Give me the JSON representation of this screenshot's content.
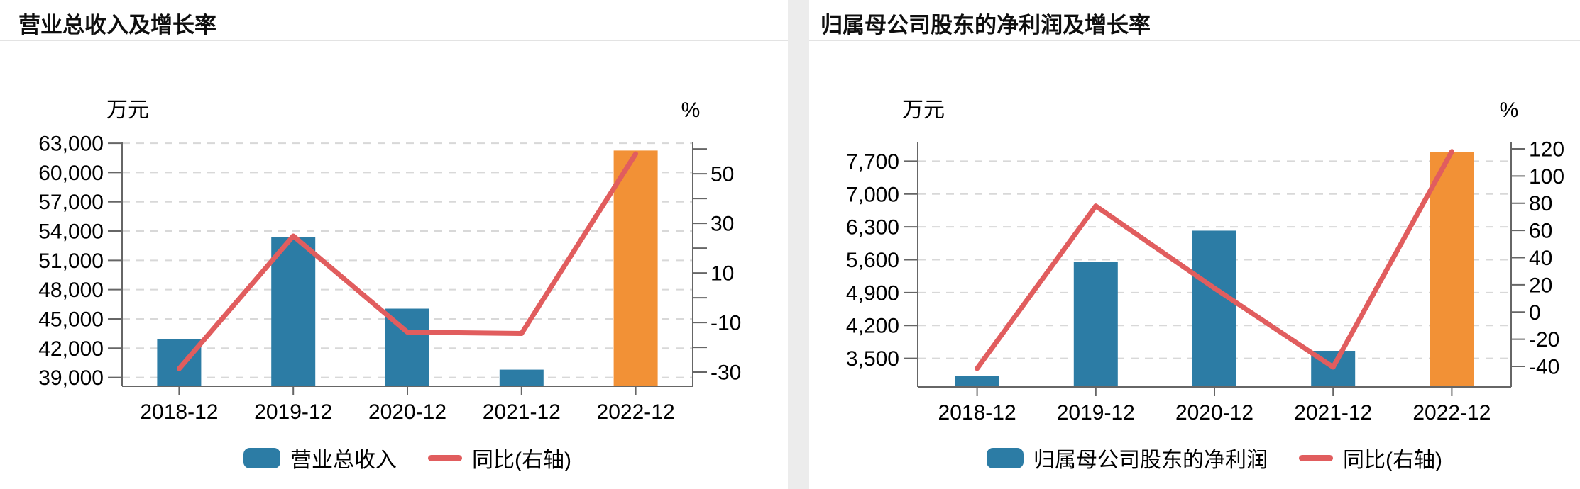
{
  "chart_data": [
    {
      "type": "bar",
      "title": "营业总收入及增长率",
      "categories": [
        "2018-12",
        "2019-12",
        "2020-12",
        "2021-12",
        "2022-12"
      ],
      "series": [
        {
          "name": "营业总收入",
          "type": "bar",
          "axis": "left",
          "values": [
            42900,
            53400,
            46050,
            39800,
            62250
          ],
          "bar_colors": [
            "#2c7ca5",
            "#2c7ca5",
            "#2c7ca5",
            "#2c7ca5",
            "#f29136"
          ]
        },
        {
          "name": "同比(右轴)",
          "type": "line",
          "axis": "right",
          "values": [
            -28.6,
            24.9,
            -13.9,
            -14.4,
            58.0
          ],
          "color": "#e15d5e"
        }
      ],
      "left_axis": {
        "unit": "万元",
        "tick_values": [
          63000,
          60000,
          57000,
          54000,
          51000,
          48000,
          45000,
          42000,
          39000
        ],
        "tick_labels": [
          "63,000",
          "60,000",
          "57,000",
          "54,000",
          "51,000",
          "48,000",
          "45,000",
          "42,000",
          "39,000"
        ],
        "min": 38100,
        "max": 63150
      },
      "right_axis": {
        "unit": "%",
        "labeled_ticks": [
          50,
          30,
          10,
          -10,
          -30
        ],
        "unlabeled_ticks": [
          60,
          40,
          20,
          0,
          -20
        ],
        "min": -35.7,
        "max": 62.9
      },
      "legend": [
        {
          "label": "营业总收入",
          "swatch": "bar",
          "color": "#2c7ca5"
        },
        {
          "label": "同比(右轴)",
          "swatch": "line",
          "color": "#e15d5e"
        }
      ],
      "grid": {
        "style": "dashed",
        "color": "#d8d8d8"
      },
      "axis_color": "#666666",
      "text_color": "#000000"
    },
    {
      "type": "bar",
      "title": "归属母公司股东的净利润及增长率",
      "categories": [
        "2018-12",
        "2019-12",
        "2020-12",
        "2021-12",
        "2022-12"
      ],
      "series": [
        {
          "name": "归属母公司股东的净利润",
          "type": "bar",
          "axis": "left",
          "values": [
            3120,
            5550,
            6220,
            3660,
            7900
          ],
          "bar_colors": [
            "#2c7ca5",
            "#2c7ca5",
            "#2c7ca5",
            "#2c7ca5",
            "#f29136"
          ]
        },
        {
          "name": "同比(右轴)",
          "type": "line",
          "axis": "right",
          "values": [
            -41.5,
            78.0,
            17.5,
            -40.5,
            118.0
          ],
          "color": "#e15d5e"
        }
      ],
      "left_axis": {
        "unit": "万元",
        "tick_values": [
          7700,
          7000,
          6300,
          5600,
          4900,
          4200,
          3500
        ],
        "tick_labels": [
          "7,700",
          "7,000",
          "6,300",
          "5,600",
          "4,900",
          "4,200",
          "3,500"
        ],
        "min": 2890,
        "max": 8114
      },
      "right_axis": {
        "unit": "%",
        "labeled_ticks": [
          120,
          100,
          80,
          60,
          40,
          20,
          0,
          -20,
          -40
        ],
        "unlabeled_ticks": [],
        "min": -55.1,
        "max": 125.2
      },
      "legend": [
        {
          "label": "归属母公司股东的净利润",
          "swatch": "bar",
          "color": "#2c7ca5"
        },
        {
          "label": "同比(右轴)",
          "swatch": "line",
          "color": "#e15d5e"
        }
      ],
      "grid": {
        "style": "dashed",
        "color": "#d8d8d8"
      },
      "axis_color": "#666666",
      "text_color": "#000000"
    }
  ]
}
